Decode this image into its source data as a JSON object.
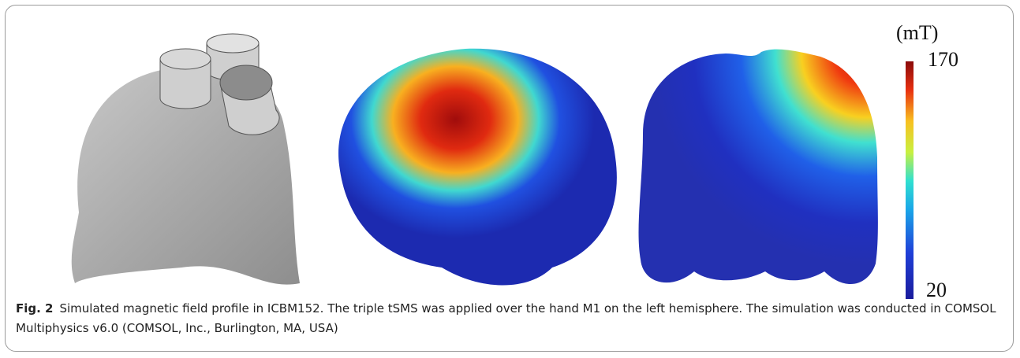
{
  "figure": {
    "colorbar": {
      "unit": "(mT)",
      "max": 170,
      "min": 20
    },
    "caption": {
      "label": "Fig. 2",
      "text": "Simulated magnetic field profile in ICBM152. The triple tSMS was applied over the hand M1 on the left hemisphere. The simulation was conducted in COMSOL Multiphysics v6.0 (COMSOL, Inc., Burlington, MA, USA)"
    }
  }
}
